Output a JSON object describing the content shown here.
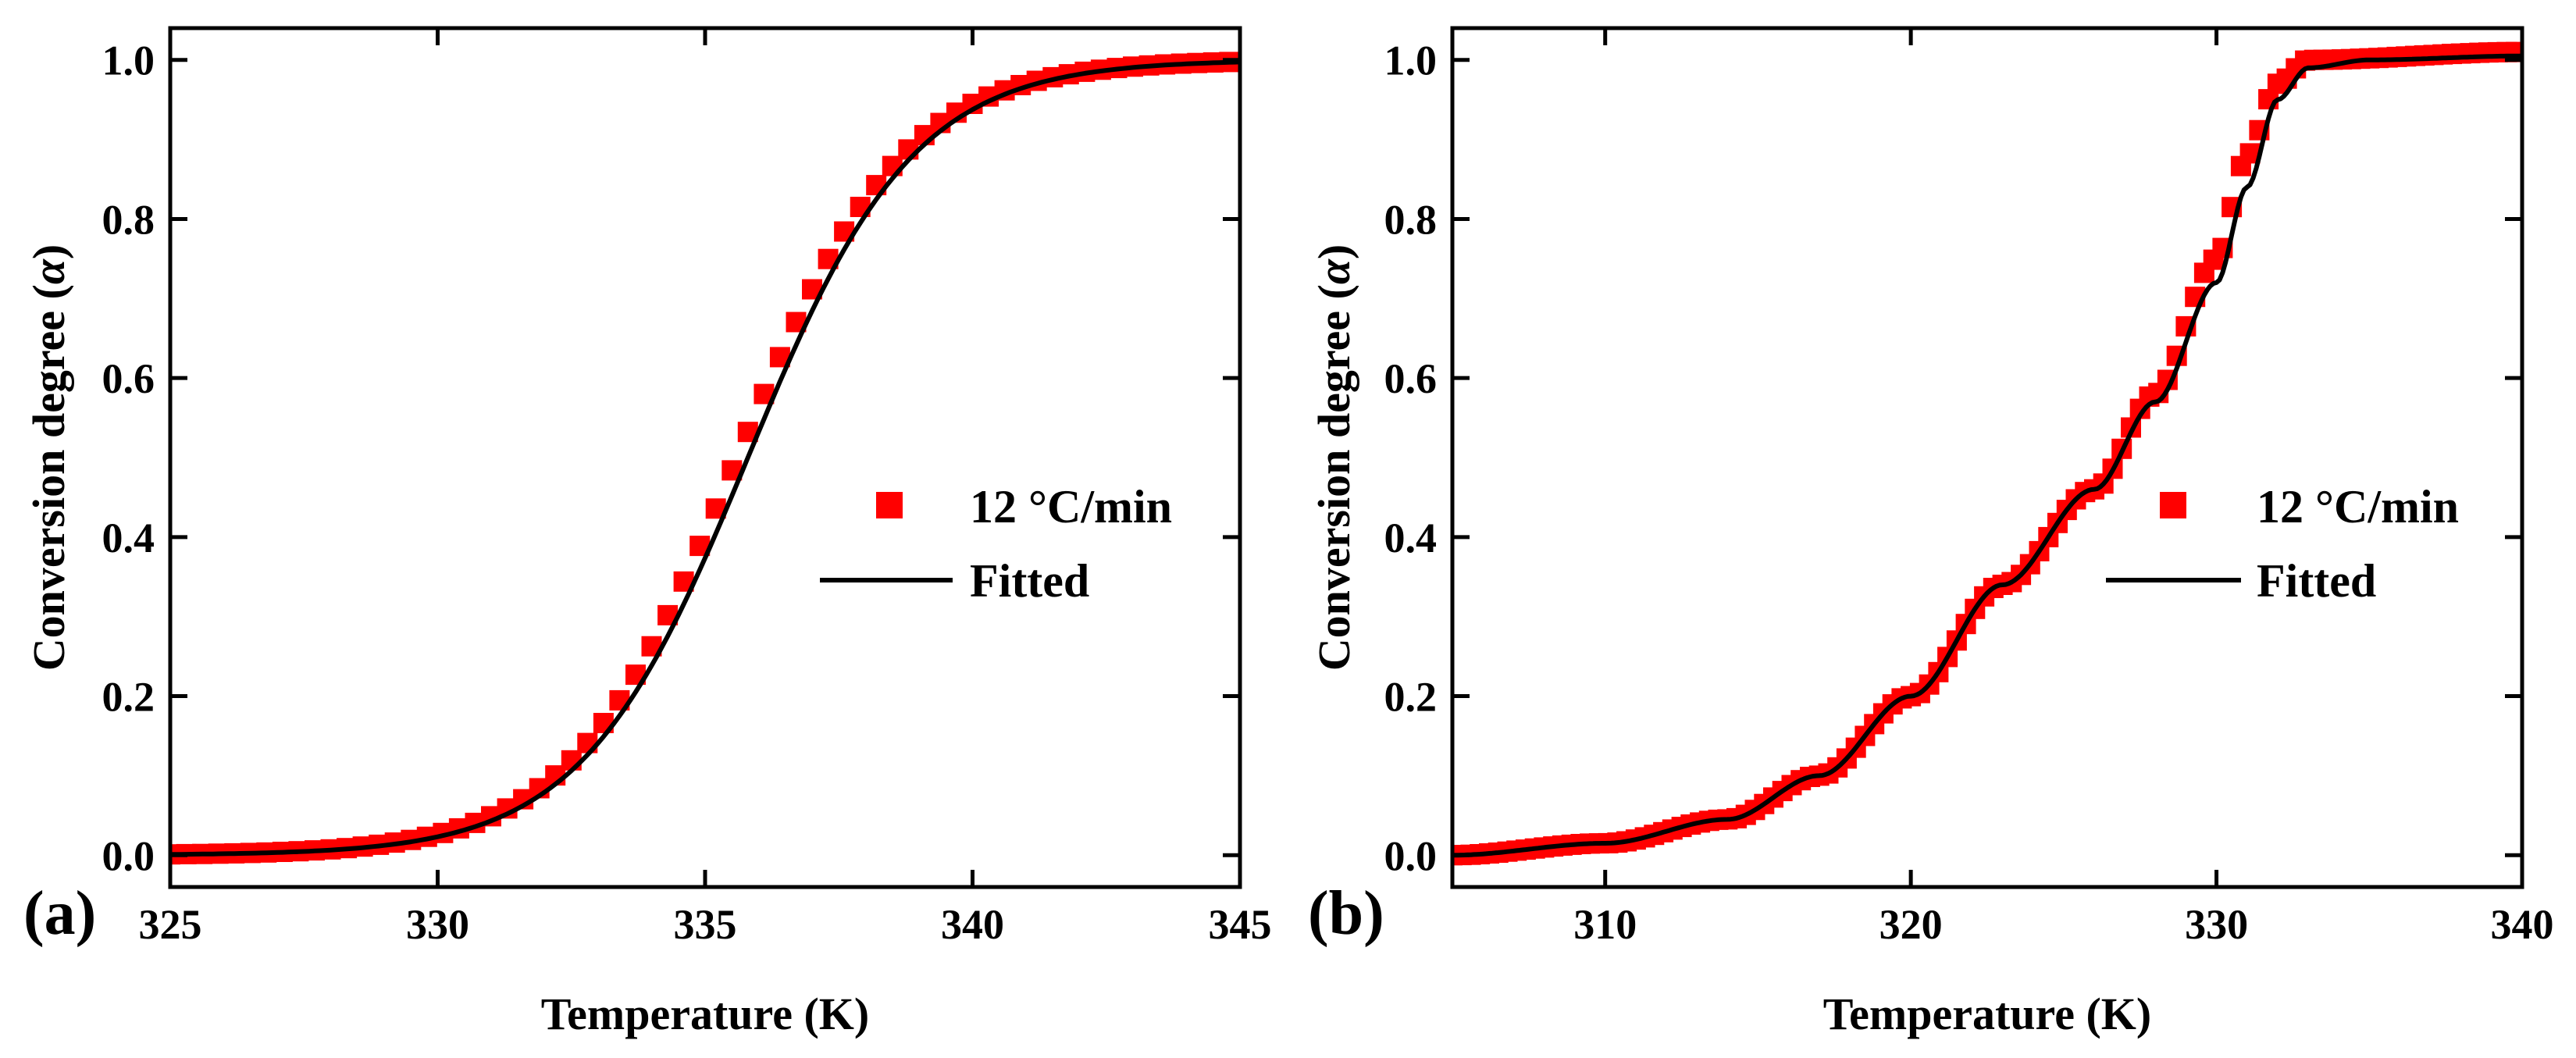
{
  "chart_data": [
    {
      "type": "scatter",
      "panel_label": "(a)",
      "xlabel": "Temperature (K)",
      "ylabel_prefix": "Conversion degree (",
      "ylabel_symbol": "α",
      "ylabel_suffix": ")",
      "xlim": [
        325,
        345
      ],
      "ylim": [
        -0.04,
        1.04
      ],
      "xticks": [
        325,
        330,
        335,
        340,
        345
      ],
      "xtick_labels": [
        "325",
        "330",
        "335",
        "340",
        "345"
      ],
      "yticks": [
        0.0,
        0.2,
        0.4,
        0.6,
        0.8,
        1.0
      ],
      "ytick_labels": [
        "0.0",
        "0.2",
        "0.4",
        "0.6",
        "0.8",
        "1.0"
      ],
      "legend_position": "center-right",
      "series": [
        {
          "name": "12 °C/min",
          "kind": "marker",
          "color": "#ff0000",
          "x_start": 325,
          "x_end": 345,
          "x_step": 0.3,
          "sigmoid": {
            "center": 335.8,
            "scale": 1.55,
            "shift": -0.2
          }
        },
        {
          "name": "Fitted",
          "kind": "line",
          "color": "#000000",
          "x_start": 325,
          "x_end": 345,
          "x_step": 0.1,
          "sigmoid": {
            "center": 335.8,
            "scale": 1.55,
            "shift": 0
          }
        }
      ]
    },
    {
      "type": "scatter",
      "panel_label": "(b)",
      "xlabel": "Temperature (K)",
      "ylabel_prefix": "Conversion degree (",
      "ylabel_symbol": "α",
      "ylabel_suffix": ")",
      "xlim": [
        305,
        340
      ],
      "ylim": [
        -0.04,
        1.04
      ],
      "xticks": [
        310,
        320,
        330,
        340
      ],
      "xtick_labels": [
        "310",
        "320",
        "330",
        "340"
      ],
      "yticks": [
        0.0,
        0.2,
        0.4,
        0.6,
        0.8,
        1.0
      ],
      "ytick_labels": [
        "0.0",
        "0.2",
        "0.4",
        "0.6",
        "0.8",
        "1.0"
      ],
      "legend_position": "center-right",
      "series": [
        {
          "name": "12 °C/min",
          "kind": "marker",
          "color": "#ff0000",
          "x_start": 305,
          "x_end": 340,
          "x_step": 0.3,
          "curve_points": [
            [
              305,
              0.0
            ],
            [
              310,
              0.015
            ],
            [
              314,
              0.045
            ],
            [
              317,
              0.1
            ],
            [
              320,
              0.2
            ],
            [
              323,
              0.34
            ],
            [
              326,
              0.46
            ],
            [
              328,
              0.58
            ],
            [
              330,
              0.75
            ],
            [
              331,
              0.88
            ],
            [
              332,
              0.97
            ],
            [
              333,
              1.0
            ],
            [
              340,
              1.01
            ]
          ]
        },
        {
          "name": "Fitted",
          "kind": "line",
          "color": "#000000",
          "x_start": 305,
          "x_end": 340,
          "x_step": 0.1,
          "curve_points": [
            [
              305,
              0.0
            ],
            [
              310,
              0.015
            ],
            [
              314,
              0.045
            ],
            [
              317,
              0.1
            ],
            [
              320,
              0.2
            ],
            [
              323,
              0.34
            ],
            [
              326,
              0.46
            ],
            [
              328,
              0.57
            ],
            [
              330,
              0.72
            ],
            [
              331,
              0.84
            ],
            [
              332,
              0.95
            ],
            [
              333,
              0.99
            ],
            [
              335,
              1.0
            ],
            [
              340,
              1.005
            ]
          ]
        }
      ]
    }
  ]
}
